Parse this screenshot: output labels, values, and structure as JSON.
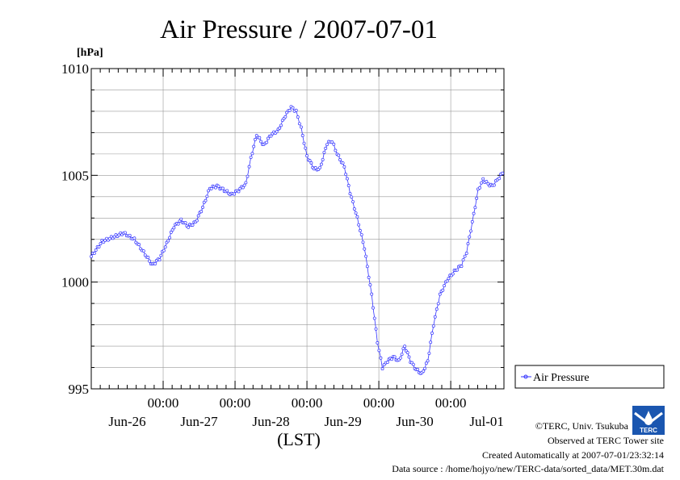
{
  "chart_data": {
    "type": "line",
    "title": "Air Pressure / 2007-07-01",
    "ylabel": "[hPa]",
    "xlabel": "(LST)",
    "ylim": [
      995,
      1010
    ],
    "xlim": [
      0,
      5.74
    ],
    "yticks": [
      {
        "value": 1010,
        "label": "1010"
      },
      {
        "value": 1005,
        "label": "1005"
      },
      {
        "value": 1000,
        "label": "1000"
      },
      {
        "value": 995,
        "label": "995"
      }
    ],
    "xticks": [
      {
        "x": 1.0,
        "time": "00:00",
        "date": "Jun-26"
      },
      {
        "x": 2.0,
        "time": "00:00",
        "date": "Jun-27"
      },
      {
        "x": 3.0,
        "time": "00:00",
        "date": "Jun-28"
      },
      {
        "x": 4.0,
        "time": "00:00",
        "date": "Jun-29"
      },
      {
        "x": 5.0,
        "time": "00:00",
        "date": "Jun-30"
      },
      {
        "x": 6.0,
        "time": "00:00",
        "date": "Jul-01"
      }
    ],
    "grid": true,
    "legend_position": "right-bottom",
    "series": [
      {
        "name": "Air Pressure",
        "color": "#3333ff",
        "points": [
          [
            0.0,
            1001.2
          ],
          [
            0.15,
            1001.9
          ],
          [
            0.3,
            1002.1
          ],
          [
            0.45,
            1002.3
          ],
          [
            0.6,
            1002.0
          ],
          [
            0.75,
            1001.3
          ],
          [
            0.85,
            1000.8
          ],
          [
            0.95,
            1001.1
          ],
          [
            1.05,
            1001.8
          ],
          [
            1.15,
            1002.6
          ],
          [
            1.25,
            1002.9
          ],
          [
            1.35,
            1002.6
          ],
          [
            1.45,
            1002.8
          ],
          [
            1.55,
            1003.5
          ],
          [
            1.65,
            1004.4
          ],
          [
            1.75,
            1004.5
          ],
          [
            1.85,
            1004.3
          ],
          [
            1.95,
            1004.1
          ],
          [
            2.05,
            1004.3
          ],
          [
            2.15,
            1004.6
          ],
          [
            2.22,
            1005.8
          ],
          [
            2.3,
            1006.9
          ],
          [
            2.4,
            1006.4
          ],
          [
            2.5,
            1006.9
          ],
          [
            2.6,
            1007.1
          ],
          [
            2.7,
            1007.8
          ],
          [
            2.78,
            1008.2
          ],
          [
            2.85,
            1008.0
          ],
          [
            2.92,
            1007.2
          ],
          [
            3.0,
            1005.9
          ],
          [
            3.1,
            1005.3
          ],
          [
            3.18,
            1005.3
          ],
          [
            3.28,
            1006.5
          ],
          [
            3.35,
            1006.6
          ],
          [
            3.42,
            1006.0
          ],
          [
            3.52,
            1005.4
          ],
          [
            3.6,
            1004.2
          ],
          [
            3.7,
            1003.0
          ],
          [
            3.8,
            1001.6
          ],
          [
            3.9,
            999.4
          ],
          [
            3.98,
            997.2
          ],
          [
            4.05,
            996.0
          ],
          [
            4.12,
            996.3
          ],
          [
            4.2,
            996.5
          ],
          [
            4.28,
            996.3
          ],
          [
            4.36,
            997.0
          ],
          [
            4.44,
            996.3
          ],
          [
            4.52,
            995.9
          ],
          [
            4.6,
            995.7
          ],
          [
            4.68,
            996.3
          ],
          [
            4.76,
            998.0
          ],
          [
            4.85,
            999.4
          ],
          [
            4.95,
            1000.1
          ],
          [
            5.05,
            1000.5
          ],
          [
            5.15,
            1000.8
          ],
          [
            5.22,
            1001.4
          ],
          [
            5.3,
            1002.8
          ],
          [
            5.38,
            1004.3
          ],
          [
            5.45,
            1004.8
          ],
          [
            5.52,
            1004.6
          ],
          [
            5.58,
            1004.5
          ],
          [
            5.65,
            1004.8
          ],
          [
            5.72,
            1005.1
          ]
        ]
      }
    ]
  },
  "footer": {
    "copyright": "©TERC, Univ. Tsukuba",
    "observed": "Observed at TERC Tower site",
    "created": "Created Automatically at 2007-07-01/23:32:14",
    "source": "Data source : /home/hojyo/new/TERC-data/sorted_data/MET.30m.dat"
  },
  "logo": {
    "text": "TERC",
    "color": "#1a56b0"
  }
}
